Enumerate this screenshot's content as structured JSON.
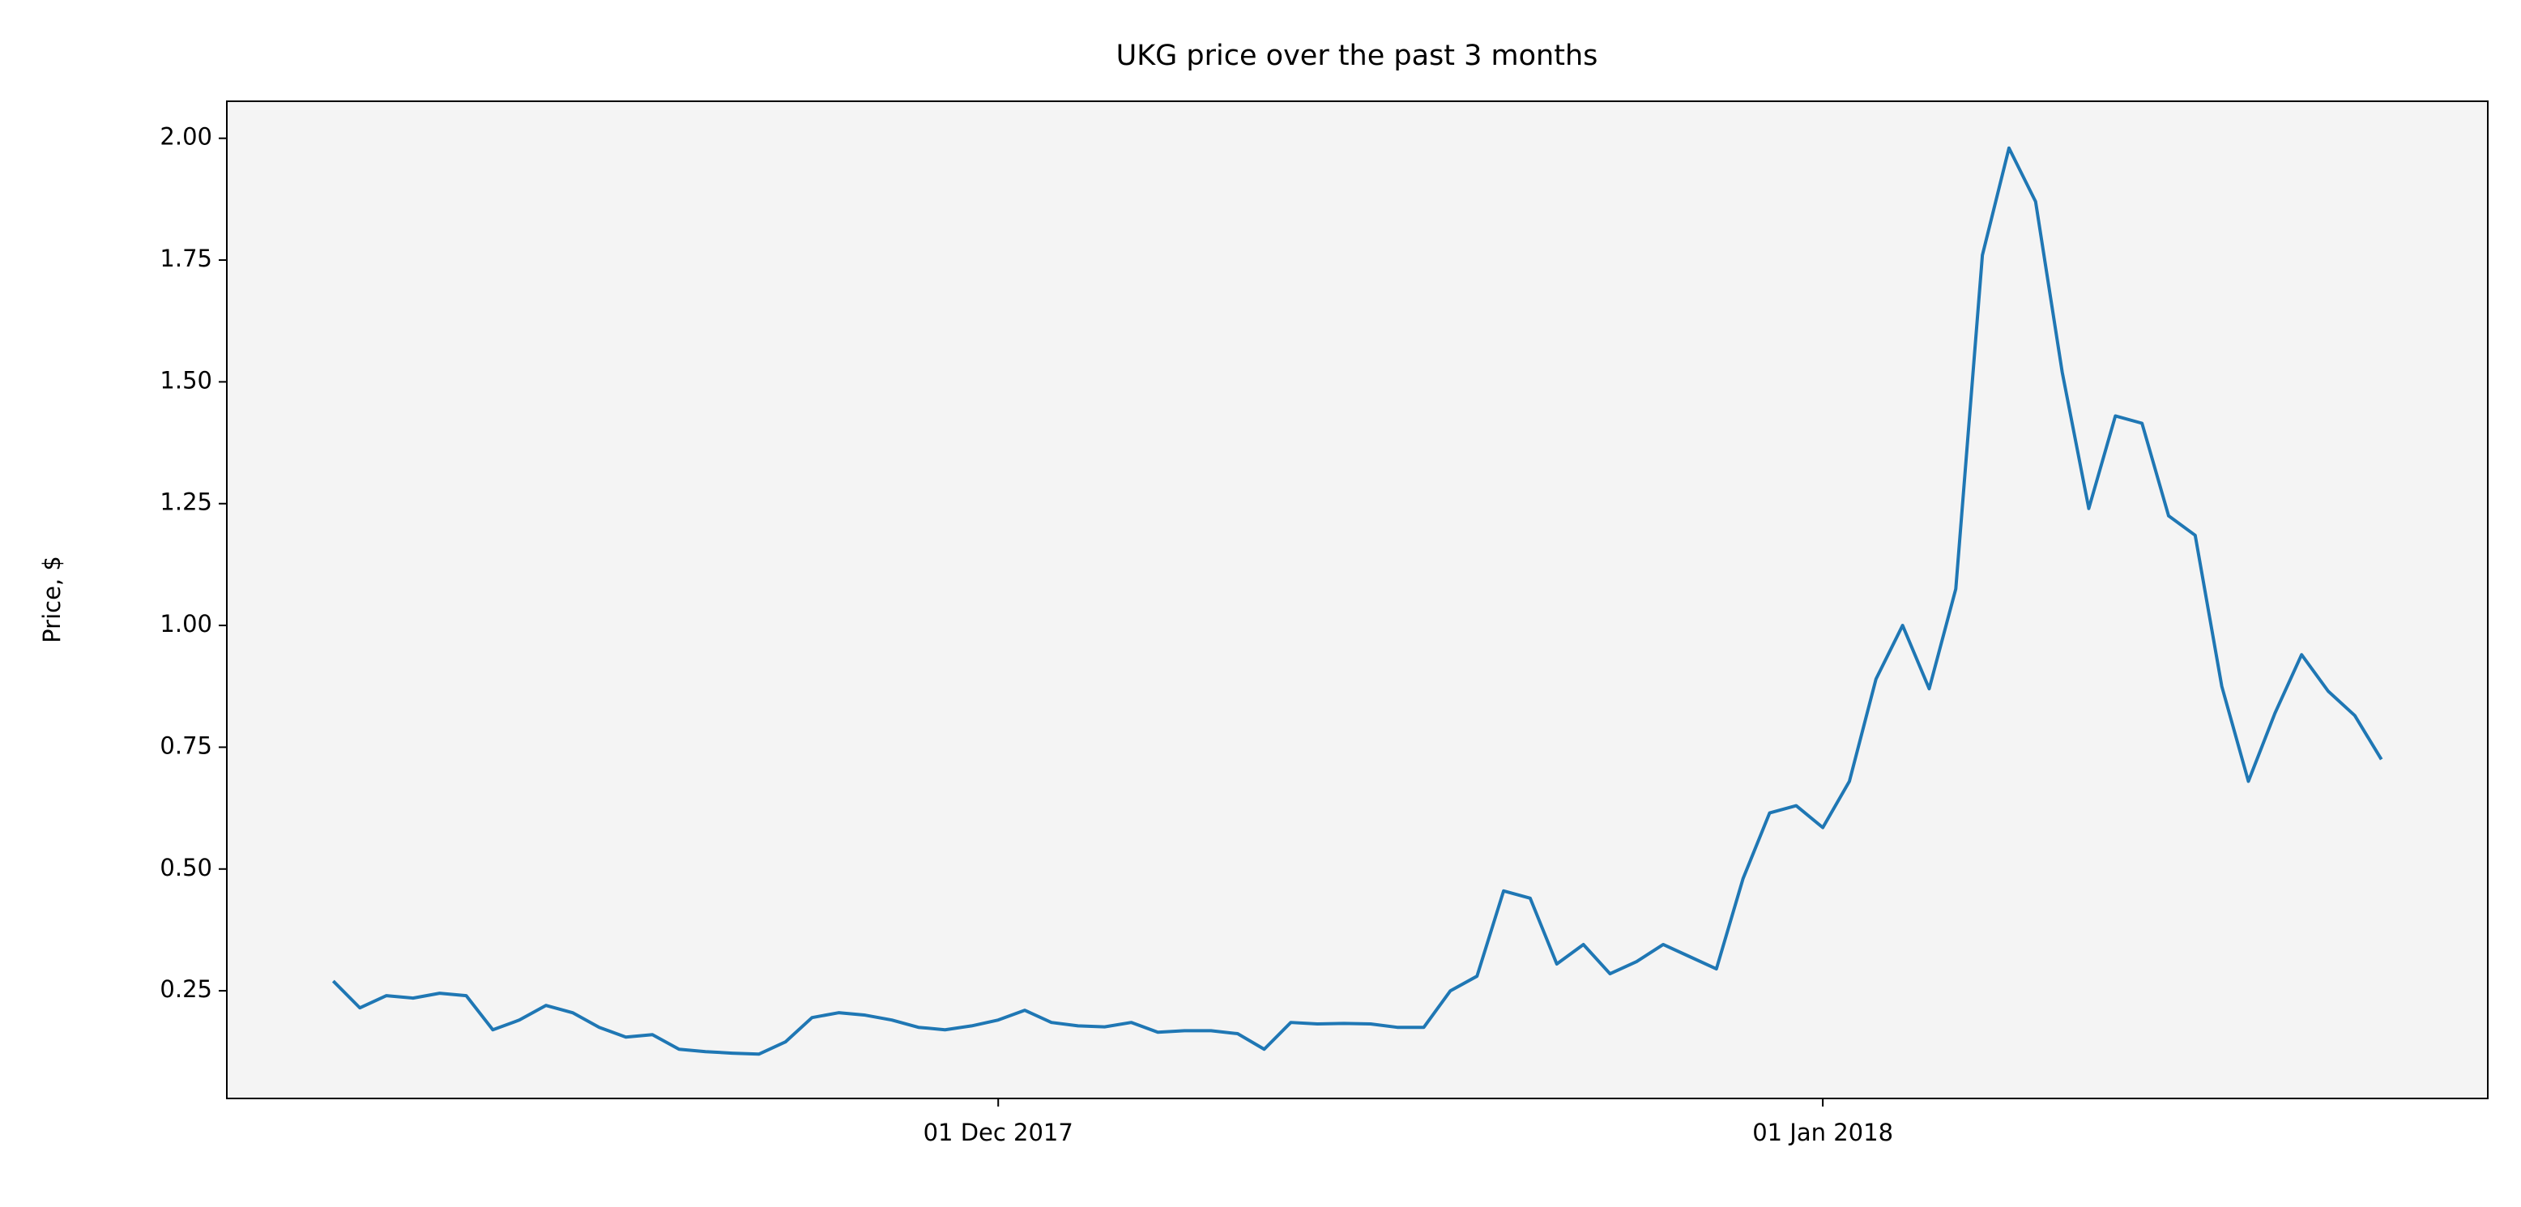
{
  "chart_data": {
    "type": "line",
    "title": "UKG price over the past 3 months",
    "y_label": "Price, $",
    "x": [
      "2017-11-06",
      "2017-11-07",
      "2017-11-08",
      "2017-11-09",
      "2017-11-10",
      "2017-11-11",
      "2017-11-12",
      "2017-11-13",
      "2017-11-14",
      "2017-11-15",
      "2017-11-16",
      "2017-11-17",
      "2017-11-18",
      "2017-11-19",
      "2017-11-20",
      "2017-11-21",
      "2017-11-22",
      "2017-11-23",
      "2017-11-24",
      "2017-11-25",
      "2017-11-26",
      "2017-11-27",
      "2017-11-28",
      "2017-11-29",
      "2017-11-30",
      "2017-12-01",
      "2017-12-02",
      "2017-12-03",
      "2017-12-04",
      "2017-12-05",
      "2017-12-06",
      "2017-12-07",
      "2017-12-08",
      "2017-12-09",
      "2017-12-10",
      "2017-12-11",
      "2017-12-12",
      "2017-12-13",
      "2017-12-14",
      "2017-12-15",
      "2017-12-16",
      "2017-12-17",
      "2017-12-18",
      "2017-12-19",
      "2017-12-20",
      "2017-12-21",
      "2017-12-22",
      "2017-12-23",
      "2017-12-24",
      "2017-12-25",
      "2017-12-26",
      "2017-12-27",
      "2017-12-28",
      "2017-12-29",
      "2017-12-30",
      "2017-12-31",
      "2018-01-01",
      "2018-01-02",
      "2018-01-03",
      "2018-01-04",
      "2018-01-05",
      "2018-01-06",
      "2018-01-07",
      "2018-01-08",
      "2018-01-09",
      "2018-01-10",
      "2018-01-11",
      "2018-01-12",
      "2018-01-13",
      "2018-01-14",
      "2018-01-15",
      "2018-01-16",
      "2018-01-17",
      "2018-01-18",
      "2018-01-19",
      "2018-01-20",
      "2018-01-21",
      "2018-01-22"
    ],
    "series": [
      {
        "name": "UKG",
        "color": "#1f77b4",
        "values": [
          0.27,
          0.215,
          0.24,
          0.235,
          0.245,
          0.24,
          0.17,
          0.19,
          0.22,
          0.205,
          0.175,
          0.155,
          0.16,
          0.13,
          0.125,
          0.122,
          0.12,
          0.145,
          0.195,
          0.205,
          0.2,
          0.19,
          0.175,
          0.17,
          0.178,
          0.19,
          0.21,
          0.185,
          0.178,
          0.176,
          0.185,
          0.165,
          0.168,
          0.168,
          0.162,
          0.13,
          0.185,
          0.182,
          0.183,
          0.182,
          0.175,
          0.175,
          0.25,
          0.28,
          0.455,
          0.44,
          0.305,
          0.345,
          0.285,
          0.31,
          0.345,
          0.32,
          0.295,
          0.48,
          0.615,
          0.63,
          0.585,
          0.68,
          0.89,
          1.0,
          0.87,
          1.075,
          1.76,
          1.98,
          1.87,
          1.52,
          1.24,
          1.43,
          1.415,
          1.225,
          1.185,
          0.875,
          0.68,
          0.82,
          0.94,
          0.865,
          0.815,
          0.725
        ]
      }
    ],
    "xlim": [
      "2017-11-02",
      "2018-01-26"
    ],
    "xticks": [
      {
        "value": "2017-12-01",
        "label": "01 Dec 2017"
      },
      {
        "value": "2018-01-01",
        "label": "01 Jan 2018"
      }
    ],
    "ylim": [
      0.029,
      2.076
    ],
    "yticks": [
      0.25,
      {
        "value": 0.5,
        "label": "0.50"
      },
      0.75,
      {
        "value": 1,
        "label": "1.00"
      },
      1.25,
      {
        "value": 1.5,
        "label": "1.50"
      },
      1.75,
      {
        "value": 2,
        "label": "2.00"
      }
    ],
    "background": "#f4f4f4"
  }
}
